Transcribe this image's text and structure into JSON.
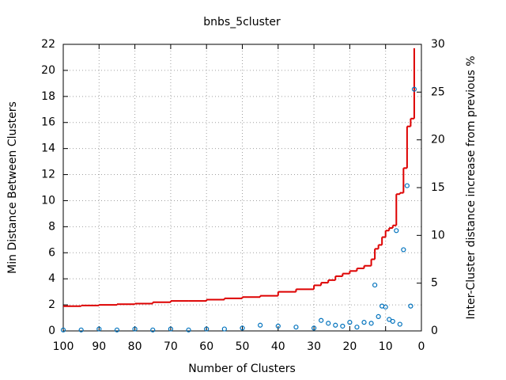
{
  "chart_data": {
    "type": "line",
    "title": "bnbs_5cluster",
    "x_label": "Number of Clusters",
    "y_label": "Min Distance Between Clusters",
    "y2_label": "Inter-Cluster distance increase from previous %",
    "x": [
      100,
      95,
      90,
      85,
      80,
      75,
      70,
      65,
      60,
      55,
      50,
      45,
      40,
      35,
      30,
      28,
      26,
      24,
      22,
      20,
      18,
      16,
      14,
      13,
      12,
      11,
      10,
      9,
      8,
      7,
      6,
      5,
      4,
      3,
      2
    ],
    "series": [
      {
        "name": "Min Distance",
        "style": "steps",
        "color": "#dd0000",
        "values": [
          1.9,
          1.95,
          2.0,
          2.05,
          2.1,
          2.2,
          2.3,
          2.3,
          2.4,
          2.5,
          2.6,
          2.7,
          3.0,
          3.2,
          3.5,
          3.7,
          3.9,
          4.2,
          4.4,
          4.6,
          4.8,
          5.0,
          5.5,
          6.3,
          6.6,
          7.2,
          7.7,
          7.9,
          8.1,
          10.5,
          10.6,
          12.5,
          15.7,
          16.3,
          21.7
        ]
      },
      {
        "name": "Increase %",
        "style": "points",
        "axis": "y2",
        "color": "#0072bd",
        "values": [
          0.1,
          0.1,
          0.2,
          0.1,
          0.2,
          0.1,
          0.2,
          0.1,
          0.2,
          0.2,
          0.3,
          0.6,
          0.5,
          0.4,
          0.3,
          1.1,
          0.8,
          0.6,
          0.5,
          0.9,
          0.4,
          0.9,
          0.8,
          4.8,
          1.5,
          2.6,
          2.5,
          1.2,
          1.0,
          10.5,
          0.7,
          8.5,
          15.2,
          2.6,
          25.3
        ]
      }
    ],
    "xlim": [
      100,
      0
    ],
    "xticks": [
      100,
      90,
      80,
      70,
      60,
      50,
      40,
      30,
      20,
      10,
      0
    ],
    "ylim": [
      0,
      22
    ],
    "yticks": [
      0,
      2,
      4,
      6,
      8,
      10,
      12,
      14,
      16,
      18,
      20,
      22
    ],
    "y2lim": [
      0,
      30
    ],
    "y2ticks": [
      0,
      5,
      10,
      15,
      20,
      25,
      30
    ],
    "grid": true
  }
}
